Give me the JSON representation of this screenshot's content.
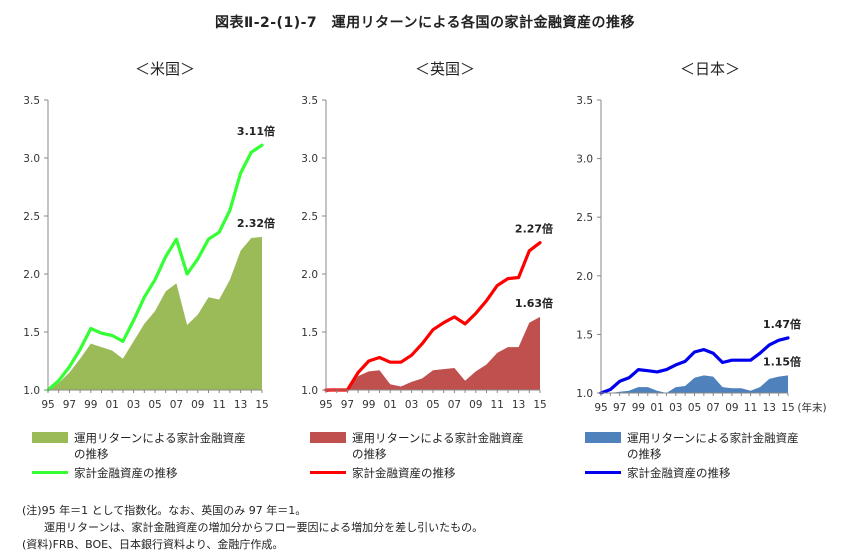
{
  "title": "図表Ⅱ-2-(1)-7　運用リターンによる各国の家計金融資産の推移",
  "x_unit_label": "(年末)",
  "notes": [
    "(注)95 年＝1 として指数化。なお、英国のみ 97 年＝1。",
    "　　運用リターンは、家計金融資産の増加分からフロー要因による増加分を差し引いたもの。",
    "(資料)FRB、BOE、日本銀行資料より、金融庁作成。"
  ],
  "chart_data": [
    {
      "type": "area",
      "title": "＜米国＞",
      "ylim": [
        1.0,
        3.5
      ],
      "yticks": [
        "1.0",
        "1.5",
        "2.0",
        "2.5",
        "3.0",
        "3.5"
      ],
      "xticks": [
        "95",
        "97",
        "99",
        "01",
        "03",
        "05",
        "07",
        "09",
        "11",
        "13",
        "15"
      ],
      "grid": false,
      "x": [
        95,
        96,
        97,
        98,
        99,
        100,
        101,
        102,
        103,
        104,
        105,
        106,
        107,
        108,
        109,
        110,
        111,
        112,
        113,
        114,
        115
      ],
      "series": [
        {
          "name": "運用リターンによる家計金融資産の推移",
          "kind": "area",
          "color": "#9bbb59",
          "values": [
            1.0,
            1.06,
            1.15,
            1.27,
            1.4,
            1.37,
            1.34,
            1.27,
            1.42,
            1.57,
            1.68,
            1.85,
            1.92,
            1.56,
            1.65,
            1.8,
            1.78,
            1.95,
            2.2,
            2.31,
            2.32
          ],
          "end_label": "2.32倍"
        },
        {
          "name": "家計金融資産の推移",
          "kind": "line",
          "color": "#33ff33",
          "values": [
            1.0,
            1.08,
            1.2,
            1.35,
            1.53,
            1.49,
            1.47,
            1.42,
            1.6,
            1.8,
            1.95,
            2.15,
            2.3,
            2.0,
            2.13,
            2.3,
            2.36,
            2.55,
            2.87,
            3.05,
            3.11
          ],
          "end_label": "3.11倍"
        }
      ]
    },
    {
      "type": "area",
      "title": "＜英国＞",
      "ylim": [
        1.0,
        3.5
      ],
      "yticks": [
        "1.0",
        "1.5",
        "2.0",
        "2.5",
        "3.0",
        "3.5"
      ],
      "xticks": [
        "95",
        "97",
        "99",
        "01",
        "03",
        "05",
        "07",
        "09",
        "11",
        "13",
        "15"
      ],
      "grid": false,
      "x": [
        95,
        96,
        97,
        98,
        99,
        100,
        101,
        102,
        103,
        104,
        105,
        106,
        107,
        108,
        109,
        110,
        111,
        112,
        113,
        114,
        115
      ],
      "series": [
        {
          "name": "運用リターンによる家計金融資産の推移",
          "kind": "area",
          "color": "#c0504d",
          "values": [
            0.98,
            1.0,
            1.0,
            1.12,
            1.16,
            1.17,
            1.05,
            1.03,
            1.07,
            1.1,
            1.17,
            1.18,
            1.19,
            1.08,
            1.16,
            1.22,
            1.32,
            1.37,
            1.37,
            1.58,
            1.63
          ],
          "end_label": "1.63倍"
        },
        {
          "name": "家計金融資産の推移",
          "kind": "line",
          "color": "#ff0000",
          "values": [
            1.0,
            1.0,
            1.0,
            1.15,
            1.25,
            1.28,
            1.24,
            1.24,
            1.3,
            1.4,
            1.52,
            1.58,
            1.63,
            1.57,
            1.66,
            1.77,
            1.9,
            1.96,
            1.97,
            2.2,
            2.27
          ],
          "end_label": "2.27倍"
        }
      ]
    },
    {
      "type": "area",
      "title": "＜日本＞",
      "ylim": [
        1.0,
        3.5
      ],
      "yticks": [
        "1.0",
        "1.5",
        "2.0",
        "2.5",
        "3.0",
        "3.5"
      ],
      "xticks": [
        "95",
        "97",
        "99",
        "01",
        "03",
        "05",
        "07",
        "09",
        "11",
        "13",
        "15"
      ],
      "grid": false,
      "x": [
        95,
        96,
        97,
        98,
        99,
        100,
        101,
        102,
        103,
        104,
        105,
        106,
        107,
        108,
        109,
        110,
        111,
        112,
        113,
        114,
        115
      ],
      "series": [
        {
          "name": "運用リターンによる家計金融資産の推移",
          "kind": "area",
          "color": "#4f81bd",
          "values": [
            1.0,
            1.0,
            1.01,
            1.02,
            1.05,
            1.05,
            1.02,
            1.0,
            1.05,
            1.06,
            1.13,
            1.15,
            1.14,
            1.05,
            1.04,
            1.04,
            1.02,
            1.05,
            1.12,
            1.14,
            1.15
          ],
          "end_label": "1.15倍"
        },
        {
          "name": "家計金融資産の推移",
          "kind": "line",
          "color": "#0000ee",
          "values": [
            1.0,
            1.03,
            1.1,
            1.13,
            1.2,
            1.19,
            1.18,
            1.2,
            1.24,
            1.27,
            1.35,
            1.37,
            1.34,
            1.26,
            1.28,
            1.28,
            1.28,
            1.34,
            1.41,
            1.45,
            1.47
          ],
          "end_label": "1.47倍"
        }
      ]
    }
  ]
}
